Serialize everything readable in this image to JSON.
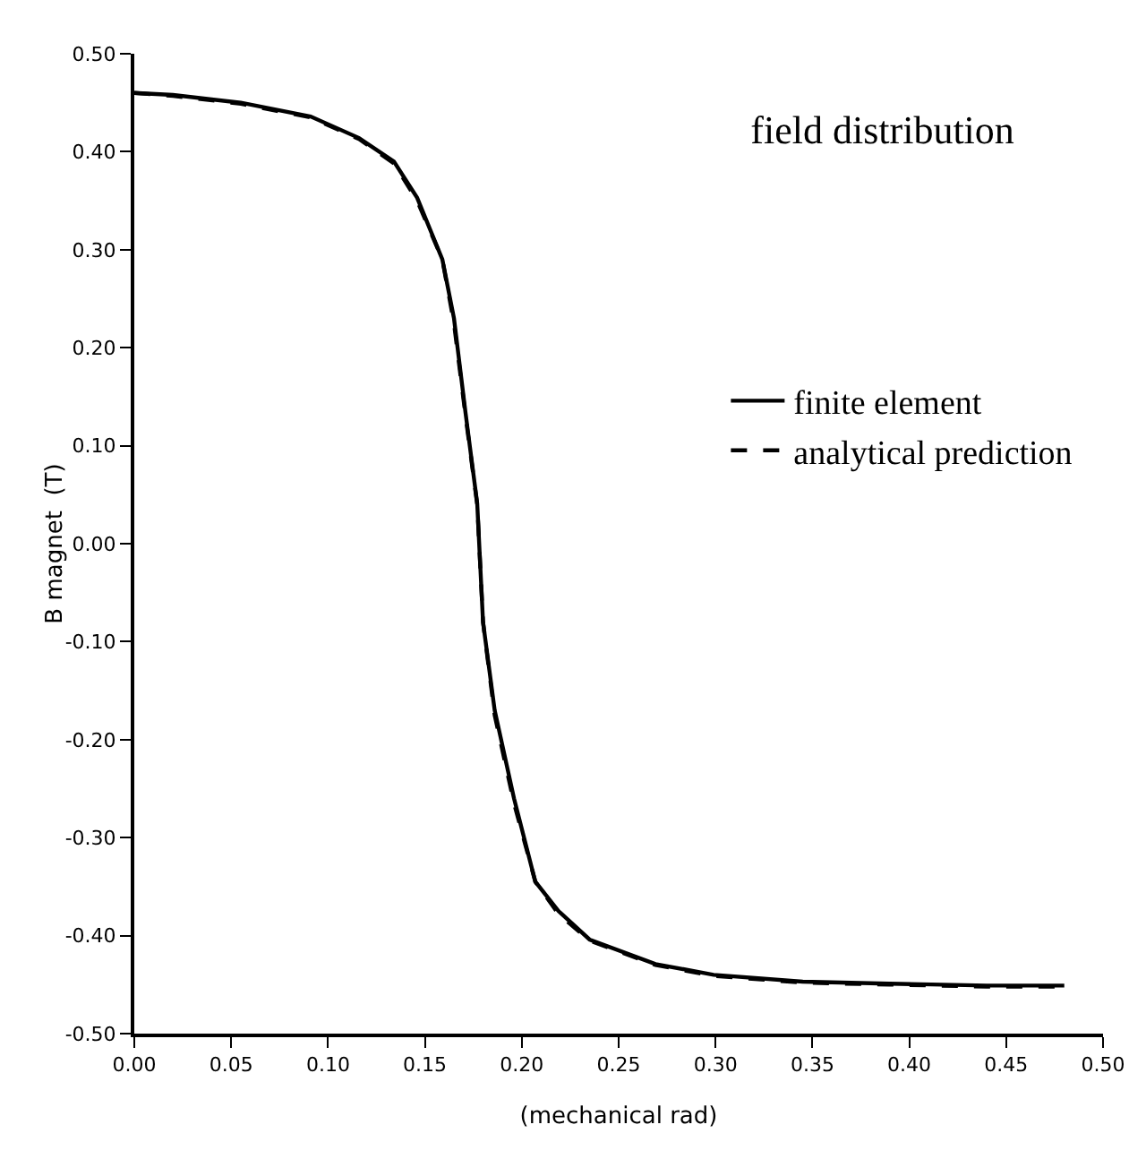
{
  "chart_data": {
    "type": "line",
    "title": "field distribution",
    "xlabel": "(mechanical rad)",
    "ylabel": "B magnet  (T)",
    "xlim": [
      0,
      0.5
    ],
    "xticks": [
      {
        "value": 0,
        "label": "0.00"
      },
      {
        "value": 0.05,
        "label": "0.05"
      },
      {
        "value": 0.1,
        "label": "0.10"
      },
      {
        "value": 0.15,
        "label": "0.15"
      },
      {
        "value": 0.2,
        "label": "0.20"
      },
      {
        "value": 0.25,
        "label": "0.25"
      },
      {
        "value": 0.3,
        "label": "0.30"
      },
      {
        "value": 0.35,
        "label": "0.35"
      },
      {
        "value": 0.4,
        "label": "0.40"
      },
      {
        "value": 0.45,
        "label": "0.45"
      },
      {
        "value": 0.5,
        "label": "0.50"
      }
    ],
    "ylim": [
      -0.5,
      0.5
    ],
    "yticks": [
      {
        "value": 0.5,
        "label": "0.50"
      },
      {
        "value": 0.4,
        "label": "0.40"
      },
      {
        "value": 0.3,
        "label": "0.30"
      },
      {
        "value": 0.2,
        "label": "0.20"
      },
      {
        "value": 0.1,
        "label": "0.10"
      },
      {
        "value": 0,
        "label": "0.00"
      },
      {
        "value": -0.1,
        "label": "-0.10"
      },
      {
        "value": -0.2,
        "label": "-0.20"
      },
      {
        "value": -0.3,
        "label": "-0.30"
      },
      {
        "value": -0.4,
        "label": "-0.40"
      },
      {
        "value": -0.5,
        "label": "-0.50"
      }
    ],
    "grid": false,
    "legend": "right",
    "marker": "none",
    "series": [
      {
        "name": "finite element",
        "color": "#000000",
        "line_style": "solid",
        "x": [
          0,
          0.02,
          0.055,
          0.091,
          0.116,
          0.134,
          0.146,
          0.159,
          0.165,
          0.171,
          0.177,
          0.18,
          0.186,
          0.196,
          0.207,
          0.219,
          0.235,
          0.269,
          0.299,
          0.345,
          0.39,
          0.44,
          0.48
        ],
        "values": [
          0.46,
          0.458,
          0.45,
          0.436,
          0.414,
          0.39,
          0.353,
          0.29,
          0.23,
          0.133,
          0.041,
          -0.08,
          -0.17,
          -0.26,
          -0.345,
          -0.375,
          -0.404,
          -0.429,
          -0.44,
          -0.447,
          -0.449,
          -0.451,
          -0.451
        ]
      },
      {
        "name": "analytical prediction",
        "color": "#000000",
        "line_style": "dashed",
        "x": [
          0,
          0.02,
          0.055,
          0.091,
          0.116,
          0.134,
          0.146,
          0.159,
          0.165,
          0.171,
          0.177,
          0.18,
          0.186,
          0.196,
          0.207,
          0.219,
          0.235,
          0.269,
          0.299,
          0.345,
          0.39,
          0.44,
          0.48
        ],
        "values": [
          0.46,
          0.457,
          0.449,
          0.435,
          0.413,
          0.388,
          0.35,
          0.29,
          0.225,
          0.13,
          0.04,
          -0.08,
          -0.175,
          -0.265,
          -0.345,
          -0.378,
          -0.405,
          -0.43,
          -0.441,
          -0.448,
          -0.45,
          -0.452,
          -0.452
        ]
      }
    ]
  }
}
